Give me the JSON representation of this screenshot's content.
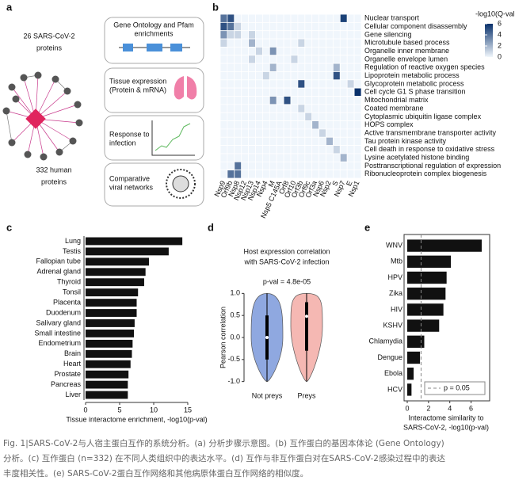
{
  "panel_labels": [
    "a",
    "b",
    "c",
    "d",
    "e"
  ],
  "panel_a": {
    "top_text": [
      "26 SARS-CoV-2",
      "proteins"
    ],
    "bottom_text": [
      "332 human",
      "proteins"
    ],
    "boxes": [
      [
        "Gene Ontology and Pfam",
        "enrichments"
      ],
      [
        "Tissue expression",
        "(Protein & mRNA)"
      ],
      [
        "Response to",
        "infection"
      ],
      [
        "Comparative",
        "viral networks"
      ]
    ]
  },
  "chart_data": [
    {
      "type": "heatmap",
      "colorbar_label": "-log10(Q-value)",
      "colorbar_lim": [
        0,
        6
      ],
      "colorbar_ticks": [
        0,
        2,
        4,
        6
      ],
      "rows": [
        "Nuclear transport",
        "Cellular component disassembly",
        "Gene silencing",
        "Microtubule based process",
        "Organelle inner membrane",
        "Organelle envelope lumen",
        "Regulation of reactive oxygen species",
        "Lipoprotein metabolic process",
        "Glycoprotein metabolic process",
        "Cell cycle G1 S phase transition",
        "Mitochondrial matrix",
        "Coated membrane",
        "Cytoplasmic ubiquitin ligase complex",
        "HOPS complex",
        "Active transmembrane transporter activity",
        "Tau protein kinase activity",
        "Cell death in response to oxidative stress",
        "Lysine acetylated histone binding",
        "Posttranscriptional regulation of expression",
        "Ribonucleoprotein complex biogenesis"
      ],
      "columns": [
        "Nsp9",
        "Orf9b",
        "Nsp8",
        "Nsp12",
        "Nsp13",
        "Nsp14",
        "Nsp4",
        "M",
        "Nsp5 C145A",
        "Orf8",
        "Orf10",
        "Orf3b",
        "Orf9c",
        "Orf3a",
        "Nsp6",
        "Nsp2",
        "S",
        "Nsp7",
        "E",
        "Nsp1"
      ],
      "values": [
        [
          4,
          5,
          0,
          0,
          0,
          0,
          0,
          0,
          0,
          0,
          0,
          0,
          0,
          0,
          0,
          0,
          0,
          5.5,
          0,
          0
        ],
        [
          5,
          4,
          1,
          0,
          0,
          0,
          0,
          0,
          0,
          0,
          0,
          0,
          0,
          0,
          0,
          0,
          0,
          0,
          0,
          0
        ],
        [
          3,
          1,
          1,
          0,
          1,
          0,
          0,
          0,
          0,
          0,
          0,
          0,
          0,
          0,
          0,
          0,
          0,
          0,
          0,
          0
        ],
        [
          1,
          0,
          0,
          0,
          2,
          0,
          0,
          0,
          0,
          0,
          0,
          1,
          0,
          0,
          0,
          0,
          0,
          0,
          0,
          0
        ],
        [
          0,
          0,
          0,
          0,
          0,
          1,
          0,
          3,
          0,
          0,
          0,
          0,
          0,
          0,
          0,
          0,
          0,
          0,
          0,
          0
        ],
        [
          0,
          0,
          0,
          0,
          1,
          0,
          0,
          0,
          0,
          0,
          1,
          0,
          0,
          0,
          0,
          0,
          0,
          0,
          0,
          0
        ],
        [
          0,
          0,
          0,
          0,
          0,
          0,
          0,
          2,
          0,
          0,
          0,
          0,
          0,
          0,
          0,
          0,
          2,
          0,
          0,
          0
        ],
        [
          0,
          0,
          0,
          0,
          0,
          0,
          1,
          0,
          0,
          0,
          0,
          0,
          0,
          0,
          0,
          0,
          5,
          0,
          0,
          0
        ],
        [
          0,
          0,
          0,
          0,
          0,
          0,
          0,
          0,
          0,
          0,
          0,
          5,
          0,
          0,
          0,
          0,
          0,
          0,
          1,
          0
        ],
        [
          0,
          0,
          0,
          0,
          0,
          0,
          0,
          0,
          0,
          0,
          0,
          0,
          0,
          0,
          0,
          0,
          0,
          0,
          0,
          6
        ],
        [
          0,
          0,
          0,
          0,
          0,
          0,
          0,
          3,
          0,
          5,
          0,
          0,
          0,
          0,
          0,
          0,
          0,
          0,
          0,
          0
        ],
        [
          0,
          0,
          0,
          0,
          0,
          0,
          0,
          0,
          0,
          0,
          0,
          1,
          0,
          0,
          0,
          0,
          0,
          0,
          0,
          0
        ],
        [
          0,
          0,
          0,
          0,
          0,
          0,
          0,
          0,
          0,
          0,
          0,
          0,
          1,
          0,
          0,
          0,
          0,
          0,
          0,
          0
        ],
        [
          0,
          0,
          0,
          0,
          0,
          0,
          0,
          0,
          0,
          0,
          0,
          0,
          0,
          2,
          0,
          0,
          0,
          0,
          0,
          0
        ],
        [
          0,
          0,
          0,
          0,
          0,
          0,
          0,
          0,
          0,
          0,
          0,
          0,
          0,
          0,
          1,
          0,
          0,
          0,
          0,
          0
        ],
        [
          0,
          0,
          0,
          0,
          0,
          0,
          0,
          0,
          0,
          0,
          0,
          0,
          0,
          0,
          0,
          2,
          0,
          0,
          0,
          0
        ],
        [
          0,
          0,
          0,
          0,
          0,
          0,
          0,
          0,
          0,
          0,
          0,
          0,
          0,
          0,
          0,
          0,
          1,
          0,
          0,
          0
        ],
        [
          0,
          0,
          0,
          0,
          0,
          0,
          0,
          0,
          0,
          0,
          0,
          0,
          0,
          0,
          0,
          0,
          0,
          2,
          0,
          0
        ],
        [
          0,
          0,
          4,
          0,
          0,
          0,
          0,
          0,
          0,
          0,
          0,
          0,
          0,
          0,
          0,
          0,
          0,
          0,
          0,
          0
        ],
        [
          0,
          4,
          4,
          0,
          0,
          0,
          0,
          0,
          0,
          0,
          0,
          0,
          0,
          0,
          0,
          0,
          0,
          0,
          0,
          0
        ]
      ]
    },
    {
      "type": "bar",
      "orientation": "horizontal",
      "color": "#111111",
      "xlabel": "Tissue interactome enrichment, -log10(p-val)",
      "categories": [
        "Lung",
        "Testis",
        "Fallopian tube",
        "Adrenal gland",
        "Thyroid",
        "Tonsil",
        "Placenta",
        "Duodenum",
        "Salivary gland",
        "Small intestine",
        "Endometrium",
        "Brain",
        "Heart",
        "Prostate",
        "Pancreas",
        "Liver"
      ],
      "values": [
        14.2,
        12.2,
        9.3,
        8.8,
        8.6,
        7.7,
        7.5,
        7.5,
        7.2,
        7.1,
        6.9,
        6.8,
        6.6,
        6.3,
        6.2,
        6.2
      ],
      "xlim": [
        0,
        15
      ],
      "xticks": [
        0,
        5,
        10,
        15
      ]
    },
    {
      "type": "violin",
      "title": [
        "Host expression correlation",
        "with SARS-CoV-2 infection"
      ],
      "annotation": "p-val = 4.8e-05",
      "ylabel": "Pearson correlation",
      "ylim": [
        -1.15,
        1.15
      ],
      "yticks": [
        {
          "value": -1,
          "label": "-1.0"
        },
        {
          "value": -0.5,
          "label": "-0.5"
        },
        {
          "value": 0,
          "label": "0.0"
        },
        {
          "value": 0.5,
          "label": "0.5"
        },
        {
          "value": 1,
          "label": "1.0"
        }
      ],
      "series": [
        {
          "name": "Not preys",
          "color": "#8fa8e0",
          "low": -1,
          "q1": -0.5,
          "median": 0,
          "q3": 0.5,
          "high": 1
        },
        {
          "name": "Preys",
          "color": "#f5b8b3",
          "low": -1,
          "q1": -0.3,
          "median": 0.48,
          "q3": 0.8,
          "high": 1
        }
      ]
    },
    {
      "type": "bar",
      "orientation": "horizontal",
      "color": "#111111",
      "xlabel": [
        "Interactome similarity to",
        "SARS-CoV-2, -log10(p-val)"
      ],
      "categories": [
        "WNV",
        "Mtb",
        "HPV",
        "Zika",
        "HIV",
        "KSHV",
        "Chlamydia",
        "Dengue",
        "Ebola",
        "HCV"
      ],
      "values": [
        7.0,
        4.1,
        3.7,
        3.6,
        3.4,
        3.0,
        1.6,
        1.2,
        0.6,
        0.4
      ],
      "xlim": [
        0,
        7.3
      ],
      "xticks": [
        0,
        2,
        4,
        6
      ],
      "threshold": {
        "value": 1.3,
        "label": "p = 0.05"
      }
    }
  ],
  "caption": [
    "Fig. 1|SARS-CoV-2与人宿主蛋白互作的系统分析。(a) 分析步骤示意图。(b) 互作蛋白的基因本体论 (Gene Ontology)",
    "分析。(c) 互作蛋白 (n=332) 在不同人类组织中的表达水平。(d) 互作与非互作蛋白对在SARS-CoV-2感染过程中的表达",
    "丰度相关性。(e) SARS-CoV-2蛋白互作网络和其他病原体蛋白互作网络的相似度。"
  ]
}
